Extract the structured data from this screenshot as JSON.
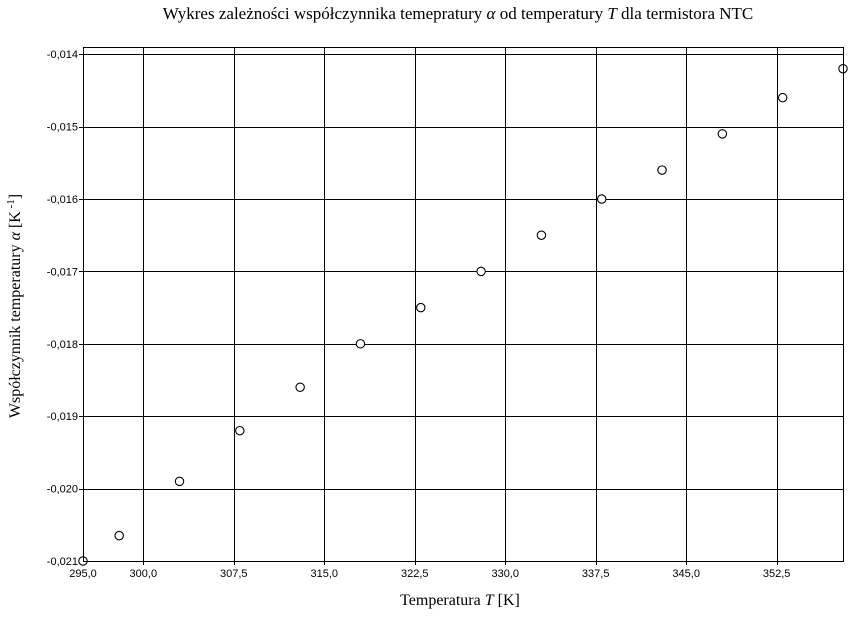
{
  "chart_data": {
    "type": "scatter",
    "title": {
      "prefix": "Wykres zależności współczynnika temepratury ",
      "symbol1": "α",
      "middle": " od temperatury ",
      "symbol2": "T",
      "suffix": " dla termistora NTC"
    },
    "xlabel": {
      "text": "Temperatura ",
      "symbol": "T",
      "unit": " [K]"
    },
    "ylabel": {
      "text": "Współczynnik temperatury ",
      "symbol": "α",
      "unit": " [K",
      "exponent": " -1",
      "close": "]"
    },
    "xlim": [
      295,
      358
    ],
    "ylim": [
      -0.021,
      -0.0139
    ],
    "x_ticks": [
      {
        "value": 295.0,
        "label": "295,0"
      },
      {
        "value": 300.0,
        "label": "300,0"
      },
      {
        "value": 307.5,
        "label": "307,5"
      },
      {
        "value": 315.0,
        "label": "315,0"
      },
      {
        "value": 322.5,
        "label": "322,5"
      },
      {
        "value": 330.0,
        "label": "330,0"
      },
      {
        "value": 337.5,
        "label": "337,5"
      },
      {
        "value": 345.0,
        "label": "345,0"
      },
      {
        "value": 352.5,
        "label": "352,5"
      }
    ],
    "y_ticks": [
      {
        "value": -0.021,
        "label": "-0,021"
      },
      {
        "value": -0.02,
        "label": "-0,020"
      },
      {
        "value": -0.019,
        "label": "-0,019"
      },
      {
        "value": -0.018,
        "label": "-0,018"
      },
      {
        "value": -0.017,
        "label": "-0,017"
      },
      {
        "value": -0.016,
        "label": "-0,016"
      },
      {
        "value": -0.015,
        "label": "-0,015"
      },
      {
        "value": -0.014,
        "label": "-0,014"
      }
    ],
    "grid": true,
    "marker": "open-circle",
    "points": [
      {
        "x": 295,
        "y": -0.021
      },
      {
        "x": 298,
        "y": -0.02065
      },
      {
        "x": 303,
        "y": -0.0199
      },
      {
        "x": 308,
        "y": -0.0192
      },
      {
        "x": 313,
        "y": -0.0186
      },
      {
        "x": 318,
        "y": -0.018
      },
      {
        "x": 323,
        "y": -0.0175
      },
      {
        "x": 328,
        "y": -0.017
      },
      {
        "x": 333,
        "y": -0.0165
      },
      {
        "x": 338,
        "y": -0.016
      },
      {
        "x": 343,
        "y": -0.0156
      },
      {
        "x": 348,
        "y": -0.0151
      },
      {
        "x": 353,
        "y": -0.0146
      },
      {
        "x": 358,
        "y": -0.0142
      }
    ]
  }
}
